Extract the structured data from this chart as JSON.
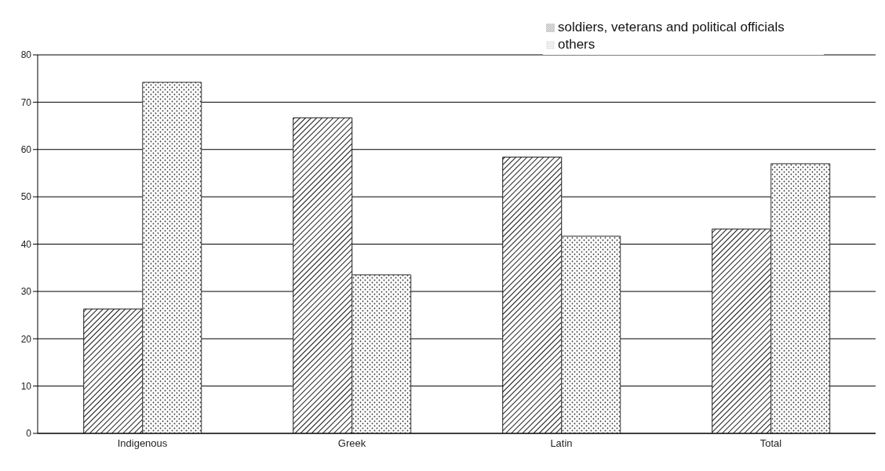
{
  "chart_data": {
    "type": "bar",
    "categories": [
      "Indigenous",
      "Greek",
      "Latin",
      "Total"
    ],
    "series": [
      {
        "name": "soldiers, veterans and political officials",
        "color": "#1a1a1a",
        "values": [
          26.3,
          66.7,
          58.4,
          43.2
        ]
      },
      {
        "name": "others",
        "color": "#333333",
        "values": [
          74.2,
          33.5,
          41.7,
          57
        ]
      }
    ],
    "ylim": [
      0,
      80
    ],
    "yticks": [
      0,
      10,
      20,
      30,
      40,
      50,
      60,
      70,
      80
    ],
    "grid": "y",
    "legend": "top right"
  }
}
